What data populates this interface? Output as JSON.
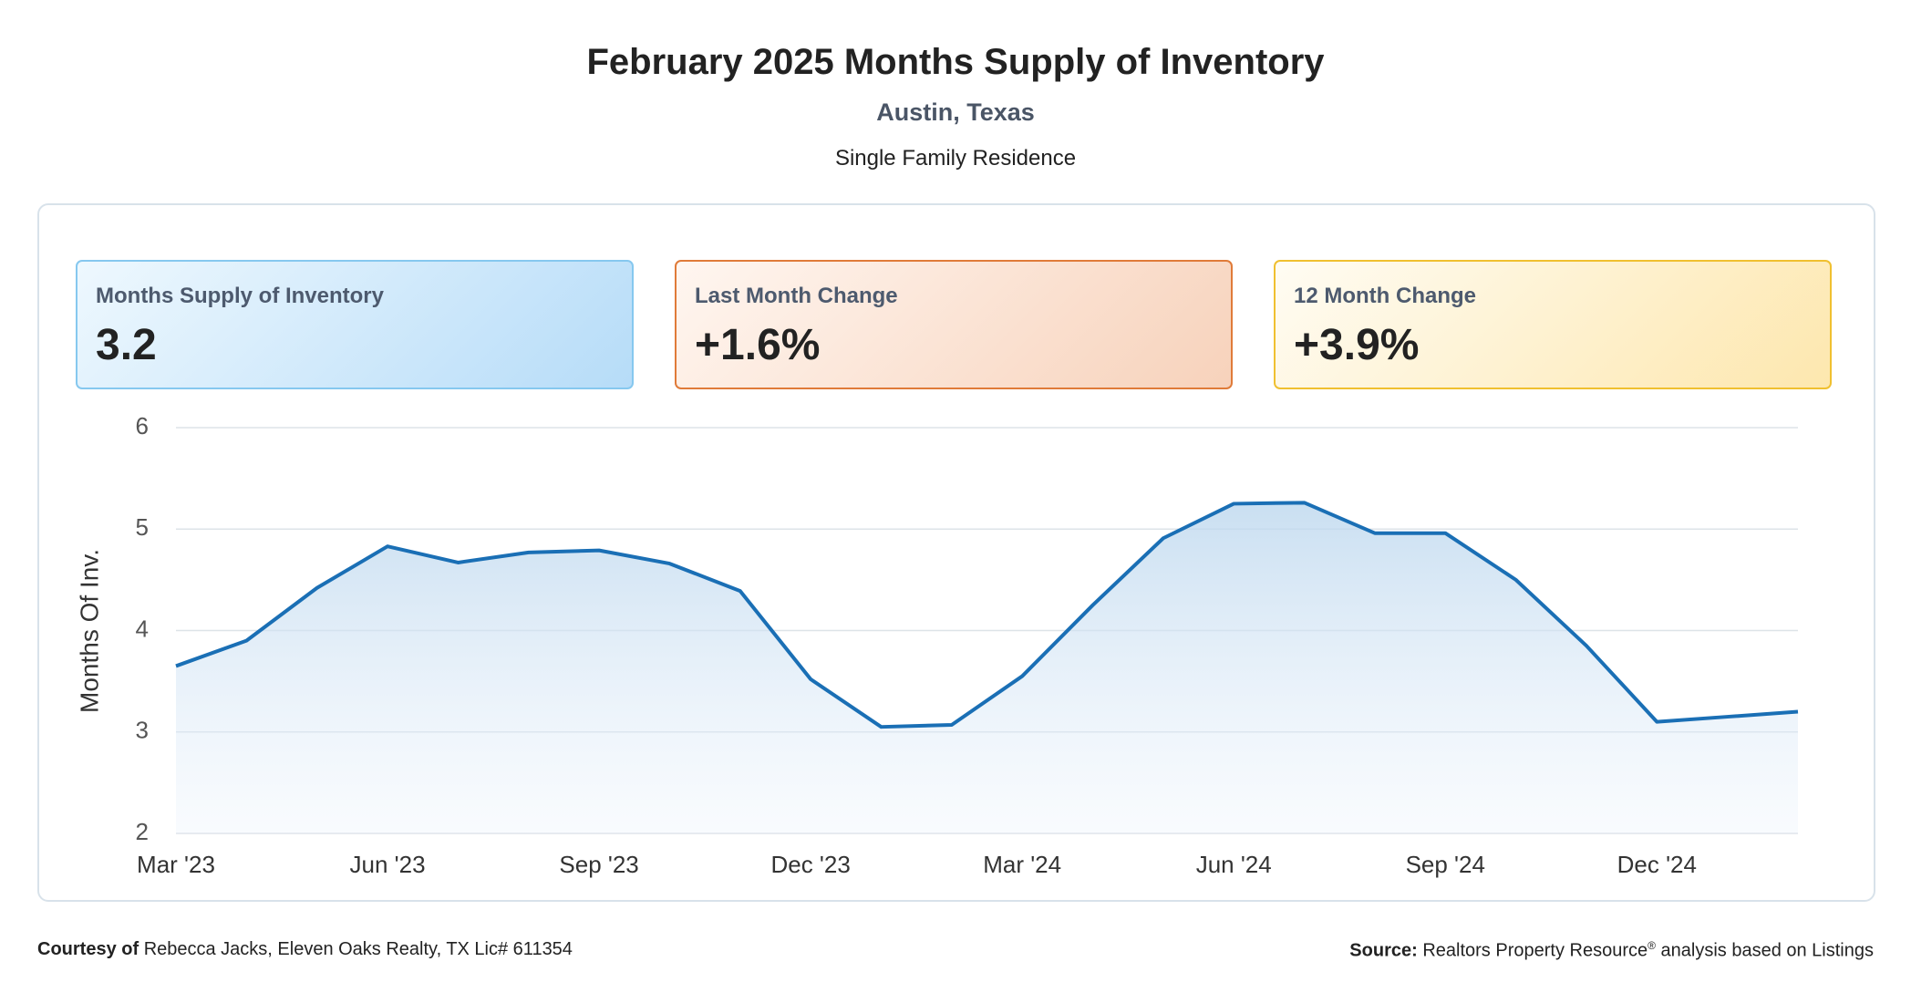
{
  "header": {
    "title": "February 2025 Months Supply of Inventory",
    "location": "Austin, Texas",
    "property_type": "Single Family Residence"
  },
  "cards": [
    {
      "label": "Months Supply of Inventory",
      "value": "3.2"
    },
    {
      "label": "Last Month Change",
      "value": "+1.6%"
    },
    {
      "label": "12 Month Change",
      "value": "+3.9%"
    }
  ],
  "chart_data": {
    "type": "line",
    "y_label": "Months Of Inv.",
    "categories": [
      "Mar '23",
      null,
      null,
      "Jun '23",
      null,
      null,
      "Sep '23",
      null,
      null,
      "Dec '23",
      null,
      null,
      "Mar '24",
      null,
      null,
      "Jun '24",
      null,
      null,
      "Sep '24",
      null,
      null,
      "Dec '24",
      null,
      null
    ],
    "values": [
      3.65,
      3.9,
      4.42,
      4.83,
      4.67,
      4.77,
      4.79,
      4.66,
      4.39,
      3.52,
      3.05,
      3.07,
      3.55,
      4.25,
      4.91,
      5.25,
      5.26,
      4.96,
      4.96,
      4.5,
      3.85,
      3.1,
      3.15,
      3.2
    ],
    "color": "#1a6fb5",
    "ylim": [
      2,
      6
    ],
    "yticks": [
      2,
      3,
      4,
      5,
      6
    ],
    "grid": true,
    "area": true
  },
  "footer": {
    "courtesy_label": "Courtesy of",
    "courtesy_text": "Rebecca Jacks, Eleven Oaks Realty, TX Lic# 611354",
    "source_label": "Source:",
    "source_text": "Realtors Property Resource",
    "source_mark": "®",
    "source_suffix": "analysis based on Listings"
  }
}
